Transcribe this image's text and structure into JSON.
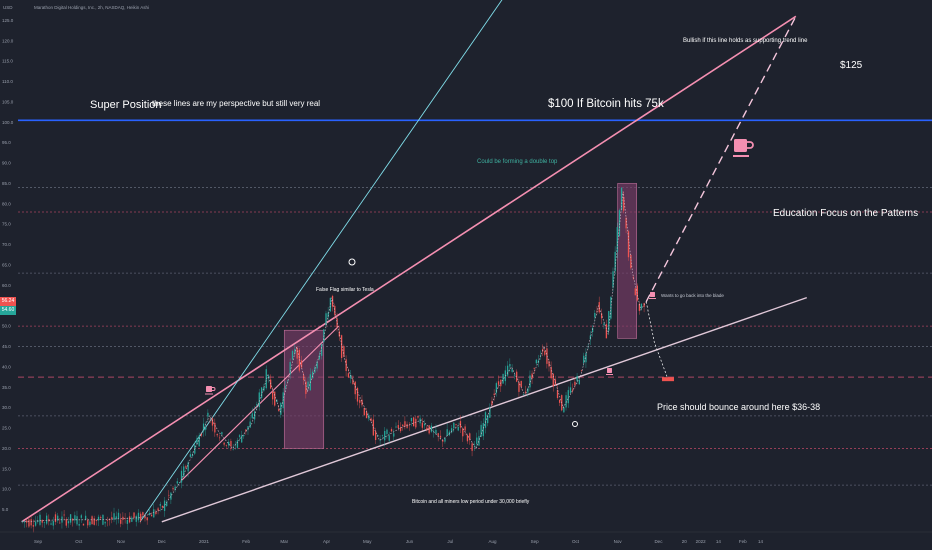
{
  "header": {
    "symbol_line": "Marathon Digital Holdings, Inc., 2h, NASDAQ, Heikin Ashi",
    "currency": "USD"
  },
  "price_tags": {
    "current_high": "56.24",
    "current_low": "54.60"
  },
  "colors": {
    "background": "#1e222d",
    "channel_line": "#f48fb1",
    "support_line": "#e0c8d8",
    "fast_line": "#80deea",
    "level_100": "#2962ff",
    "candle_up": "#26a69a",
    "candle_down": "#ef5350",
    "box": "#7b3d68",
    "gridline_dashed": "#6a6f80",
    "dotted_levels": "#c84a6a"
  },
  "annotations": {
    "super_position": "Super Position",
    "perspective": "these lines are my perspective but still very real",
    "bitcoin_target": "$100 If Bitcoin hits 75k",
    "bullish_note": "Bullish if this line holds as supporting trend line",
    "target_125": "$125",
    "double_top": "Could be forming a double top",
    "education": "Education Focus on the Patterns",
    "false_flag": "False Flag similar to Tesla",
    "back_into_blade": "Wants to go back into the blade",
    "bounce_note": "Price should bounce around here $36-38",
    "miners_low": "Bitcoin and all miners low period under 30,000 briefly"
  },
  "chart_data": {
    "type": "candlestick",
    "title": "Marathon Digital Holdings, Inc., 2h, NASDAQ, Heikin Ashi",
    "ylim": [
      0,
      130
    ],
    "y_ticks": [
      5,
      10,
      15,
      20,
      25,
      30,
      35,
      40,
      45,
      50,
      55,
      60,
      65,
      70,
      75,
      80,
      85,
      90,
      95,
      100,
      105,
      110,
      115,
      120,
      125
    ],
    "x_ticks": [
      {
        "label": "Sep",
        "date": "2020-09-01"
      },
      {
        "label": "Oct",
        "date": "2020-10-01"
      },
      {
        "label": "Nov",
        "date": "2020-11-01"
      },
      {
        "label": "Dec",
        "date": "2020-12-01"
      },
      {
        "label": "2021",
        "date": "2021-01-01"
      },
      {
        "label": "Feb",
        "date": "2021-02-01"
      },
      {
        "label": "Mar",
        "date": "2021-03-01"
      },
      {
        "label": "Apr",
        "date": "2021-04-01"
      },
      {
        "label": "May",
        "date": "2021-05-01"
      },
      {
        "label": "Jun",
        "date": "2021-06-01"
      },
      {
        "label": "Jul",
        "date": "2021-07-01"
      },
      {
        "label": "Aug",
        "date": "2021-08-01"
      },
      {
        "label": "Sep",
        "date": "2021-09-01"
      },
      {
        "label": "Oct",
        "date": "2021-10-01"
      },
      {
        "label": "Nov",
        "date": "2021-11-01"
      },
      {
        "label": "Dec",
        "date": "2021-12-01"
      },
      {
        "label": "20",
        "date": "2021-12-20"
      },
      {
        "label": "2022",
        "date": "2022-01-01"
      },
      {
        "label": "14",
        "date": "2022-01-14"
      },
      {
        "label": "Feb",
        "date": "2022-02-01"
      },
      {
        "label": "14",
        "date": "2022-02-14"
      }
    ],
    "price_path": [
      {
        "date": "2020-08-20",
        "value": 2
      },
      {
        "date": "2020-09-15",
        "value": 2.5
      },
      {
        "date": "2020-10-15",
        "value": 2.5
      },
      {
        "date": "2020-11-15",
        "value": 3
      },
      {
        "date": "2020-12-01",
        "value": 5
      },
      {
        "date": "2020-12-15",
        "value": 12
      },
      {
        "date": "2020-12-28",
        "value": 22
      },
      {
        "date": "2021-01-05",
        "value": 28
      },
      {
        "date": "2021-01-12",
        "value": 24
      },
      {
        "date": "2021-01-22",
        "value": 20
      },
      {
        "date": "2021-02-05",
        "value": 26
      },
      {
        "date": "2021-02-17",
        "value": 38
      },
      {
        "date": "2021-02-26",
        "value": 29
      },
      {
        "date": "2021-03-10",
        "value": 45
      },
      {
        "date": "2021-03-18",
        "value": 34
      },
      {
        "date": "2021-03-28",
        "value": 44
      },
      {
        "date": "2021-04-05",
        "value": 57
      },
      {
        "date": "2021-04-15",
        "value": 41
      },
      {
        "date": "2021-04-25",
        "value": 33
      },
      {
        "date": "2021-05-10",
        "value": 22
      },
      {
        "date": "2021-05-25",
        "value": 25
      },
      {
        "date": "2021-06-10",
        "value": 27
      },
      {
        "date": "2021-06-25",
        "value": 22
      },
      {
        "date": "2021-07-08",
        "value": 26
      },
      {
        "date": "2021-07-20",
        "value": 20
      },
      {
        "date": "2021-08-05",
        "value": 35
      },
      {
        "date": "2021-08-15",
        "value": 40
      },
      {
        "date": "2021-08-25",
        "value": 33
      },
      {
        "date": "2021-09-08",
        "value": 45
      },
      {
        "date": "2021-09-22",
        "value": 30
      },
      {
        "date": "2021-10-05",
        "value": 38
      },
      {
        "date": "2021-10-18",
        "value": 55
      },
      {
        "date": "2021-10-25",
        "value": 48
      },
      {
        "date": "2021-11-05",
        "value": 83
      },
      {
        "date": "2021-11-12",
        "value": 63
      },
      {
        "date": "2021-11-18",
        "value": 54
      },
      {
        "date": "2021-11-22",
        "value": 56
      }
    ],
    "projection_path": [
      {
        "date": "2021-11-22",
        "value": 56
      },
      {
        "date": "2021-11-28",
        "value": 46
      },
      {
        "date": "2021-12-08",
        "value": 37
      }
    ],
    "trend_lines": [
      {
        "name": "upper-channel",
        "start": {
          "date": "2020-08-20",
          "value": 2
        },
        "end": {
          "date": "2022-03-12",
          "value": 126
        }
      },
      {
        "name": "support-line",
        "start": {
          "date": "2020-12-01",
          "value": 2
        },
        "end": {
          "date": "2022-03-20",
          "value": 57
        }
      },
      {
        "name": "steep-fast-line",
        "start": {
          "date": "2020-11-15",
          "value": 2
        },
        "end": {
          "date": "2021-08-10",
          "value": 131
        }
      },
      {
        "name": "dashed-target-line",
        "start": {
          "date": "2021-11-22",
          "value": 56
        },
        "end": {
          "date": "2022-03-12",
          "value": 126
        }
      },
      {
        "name": "mid-channel",
        "start": {
          "date": "2020-12-15",
          "value": 12
        },
        "end": {
          "date": "2021-04-10",
          "value": 50
        }
      }
    ],
    "horizontal_levels": [
      {
        "value": 100.5,
        "style": "solid-blue"
      },
      {
        "value": 84,
        "style": "dotted"
      },
      {
        "value": 78,
        "style": "dotted"
      },
      {
        "value": 63,
        "style": "dotted"
      },
      {
        "value": 50,
        "style": "dotted"
      },
      {
        "value": 45,
        "style": "dotted"
      },
      {
        "value": 37.5,
        "style": "dashed"
      },
      {
        "value": 28,
        "style": "dotted"
      },
      {
        "value": 20,
        "style": "dotted"
      },
      {
        "value": 11,
        "style": "dotted"
      }
    ],
    "boxes": [
      {
        "x0": "2021-03-01",
        "x1": "2021-03-30",
        "y0": 20,
        "y1": 49
      },
      {
        "x0": "2021-11-01",
        "x1": "2021-11-15",
        "y0": 47,
        "y1": 85
      }
    ],
    "grid": true,
    "legend": "none"
  }
}
